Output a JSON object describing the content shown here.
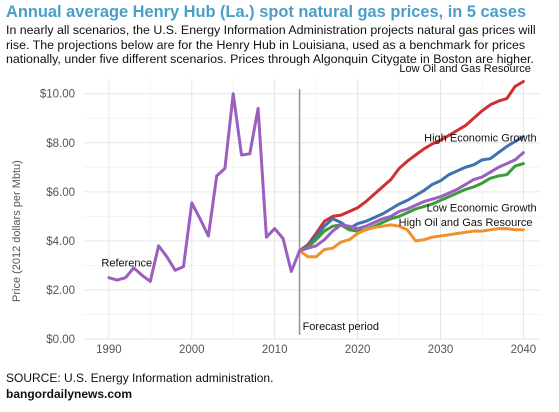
{
  "title": "Annual average Henry Hub (La.) spot natural gas prices, in 5 cases",
  "subtitle": "In nearly all scenarios, the U.S. Energy Information Administration projects natural gas prices will rise. The projections below are for the Henry Hub in Louisiana, used as a benchmark for prices nationally, under five different scenarios. Prices through Algonquin Citygate in Boston are higher.",
  "source": "SOURCE: U.S. Energy Information administration.",
  "site": "bangordailynews.com",
  "chart_data": {
    "type": "line",
    "ylabel": "Price (2012 dollars per Mbtu)",
    "xlim": [
      1987,
      2042
    ],
    "ylim": [
      0,
      10.6
    ],
    "x_ticks": [
      1990,
      2000,
      2010,
      2020,
      2030,
      2040
    ],
    "x_tick_labels": [
      "1990",
      "2000",
      "2010",
      "2020",
      "2030",
      "2040"
    ],
    "y_ticks": [
      0,
      2,
      4,
      6,
      8,
      10
    ],
    "y_tick_labels": [
      "$0.00",
      "$2.00",
      "$4.00",
      "$6.00",
      "$8.00",
      "$10.00"
    ],
    "grid": true,
    "forecast_line": {
      "x": 2013,
      "label": "Forecast period"
    },
    "series": [
      {
        "name": "Reference",
        "color": "#9b5fc0",
        "x": [
          1990,
          1991,
          1992,
          1993,
          1994,
          1995,
          1996,
          1997,
          1998,
          1999,
          2000,
          2001,
          2002,
          2003,
          2004,
          2005,
          2006,
          2007,
          2008,
          2009,
          2010,
          2011,
          2012,
          2013,
          2014,
          2015,
          2016,
          2017,
          2018,
          2019,
          2020,
          2021,
          2022,
          2023,
          2024,
          2025,
          2026,
          2027,
          2028,
          2029,
          2030,
          2031,
          2032,
          2033,
          2034,
          2035,
          2036,
          2037,
          2038,
          2039,
          2040
        ],
        "y": [
          2.5,
          2.4,
          2.5,
          2.9,
          2.6,
          2.35,
          3.8,
          3.35,
          2.8,
          2.95,
          5.55,
          4.9,
          4.2,
          6.65,
          6.95,
          10.0,
          7.5,
          7.55,
          9.4,
          4.15,
          4.5,
          4.1,
          2.75,
          3.6,
          3.7,
          3.8,
          4.05,
          4.4,
          4.65,
          4.6,
          4.5,
          4.6,
          4.75,
          4.9,
          5.0,
          5.2,
          5.3,
          5.45,
          5.6,
          5.7,
          5.8,
          5.95,
          6.1,
          6.3,
          6.5,
          6.6,
          6.8,
          7.0,
          7.15,
          7.3,
          7.6
        ]
      },
      {
        "name": "Low Oil and Gas Resource",
        "color": "#d03030",
        "x": [
          2013,
          2014,
          2015,
          2016,
          2017,
          2018,
          2019,
          2020,
          2021,
          2022,
          2023,
          2024,
          2025,
          2026,
          2027,
          2028,
          2029,
          2030,
          2031,
          2032,
          2033,
          2034,
          2035,
          2036,
          2037,
          2038,
          2039,
          2040
        ],
        "y": [
          3.6,
          3.85,
          4.3,
          4.8,
          5.0,
          5.05,
          5.2,
          5.35,
          5.6,
          5.9,
          6.2,
          6.5,
          6.95,
          7.25,
          7.5,
          7.75,
          7.95,
          8.1,
          8.3,
          8.5,
          8.7,
          9.0,
          9.3,
          9.55,
          9.7,
          9.8,
          10.3,
          10.5
        ]
      },
      {
        "name": "High Economic Growth",
        "color": "#3e73b0",
        "x": [
          2013,
          2014,
          2015,
          2016,
          2017,
          2018,
          2019,
          2020,
          2021,
          2022,
          2023,
          2024,
          2025,
          2026,
          2027,
          2028,
          2029,
          2030,
          2031,
          2032,
          2033,
          2034,
          2035,
          2036,
          2037,
          2038,
          2039,
          2040
        ],
        "y": [
          3.6,
          3.8,
          4.2,
          4.6,
          4.9,
          4.75,
          4.5,
          4.7,
          4.8,
          4.95,
          5.1,
          5.3,
          5.5,
          5.65,
          5.85,
          6.05,
          6.3,
          6.45,
          6.7,
          6.85,
          7.0,
          7.1,
          7.3,
          7.35,
          7.6,
          7.85,
          8.05,
          8.25
        ]
      },
      {
        "name": "Low Economic Growth",
        "color": "#3c9c3c",
        "x": [
          2013,
          2014,
          2015,
          2016,
          2017,
          2018,
          2019,
          2020,
          2021,
          2022,
          2023,
          2024,
          2025,
          2026,
          2027,
          2028,
          2029,
          2030,
          2031,
          2032,
          2033,
          2034,
          2035,
          2036,
          2037,
          2038,
          2039,
          2040
        ],
        "y": [
          3.6,
          3.75,
          4.05,
          4.4,
          4.6,
          4.65,
          4.45,
          4.4,
          4.45,
          4.6,
          4.75,
          4.9,
          5.0,
          5.15,
          5.3,
          5.4,
          5.5,
          5.65,
          5.8,
          5.95,
          6.1,
          6.2,
          6.35,
          6.55,
          6.65,
          6.7,
          7.05,
          7.15
        ]
      },
      {
        "name": "High Oil and Gas Resource",
        "color": "#f0922b",
        "x": [
          2013,
          2014,
          2015,
          2016,
          2017,
          2018,
          2019,
          2020,
          2021,
          2022,
          2023,
          2024,
          2025,
          2026,
          2027,
          2028,
          2029,
          2030,
          2031,
          2032,
          2033,
          2034,
          2035,
          2036,
          2037,
          2038,
          2039,
          2040
        ],
        "y": [
          3.6,
          3.35,
          3.35,
          3.65,
          3.7,
          3.95,
          4.05,
          4.3,
          4.45,
          4.55,
          4.6,
          4.65,
          4.6,
          4.45,
          4.0,
          4.05,
          4.15,
          4.2,
          4.25,
          4.3,
          4.35,
          4.4,
          4.4,
          4.45,
          4.5,
          4.5,
          4.45,
          4.45
        ]
      }
    ],
    "annotations": [
      {
        "text": "Reference",
        "x": 1989.1,
        "y": 2.95,
        "anchor": "start"
      },
      {
        "text": "Low Oil and Gas Resource",
        "x": 2040.9,
        "y": 10.88,
        "anchor": "end"
      },
      {
        "text": "High Economic Growth",
        "x": 2041.6,
        "y": 8.05,
        "anchor": "end"
      },
      {
        "text": "Low Economic Growth",
        "x": 2041.6,
        "y": 5.2,
        "anchor": "end"
      },
      {
        "text": "High Oil and Gas Resource",
        "x": 2041.1,
        "y": 4.6,
        "anchor": "end"
      }
    ]
  }
}
